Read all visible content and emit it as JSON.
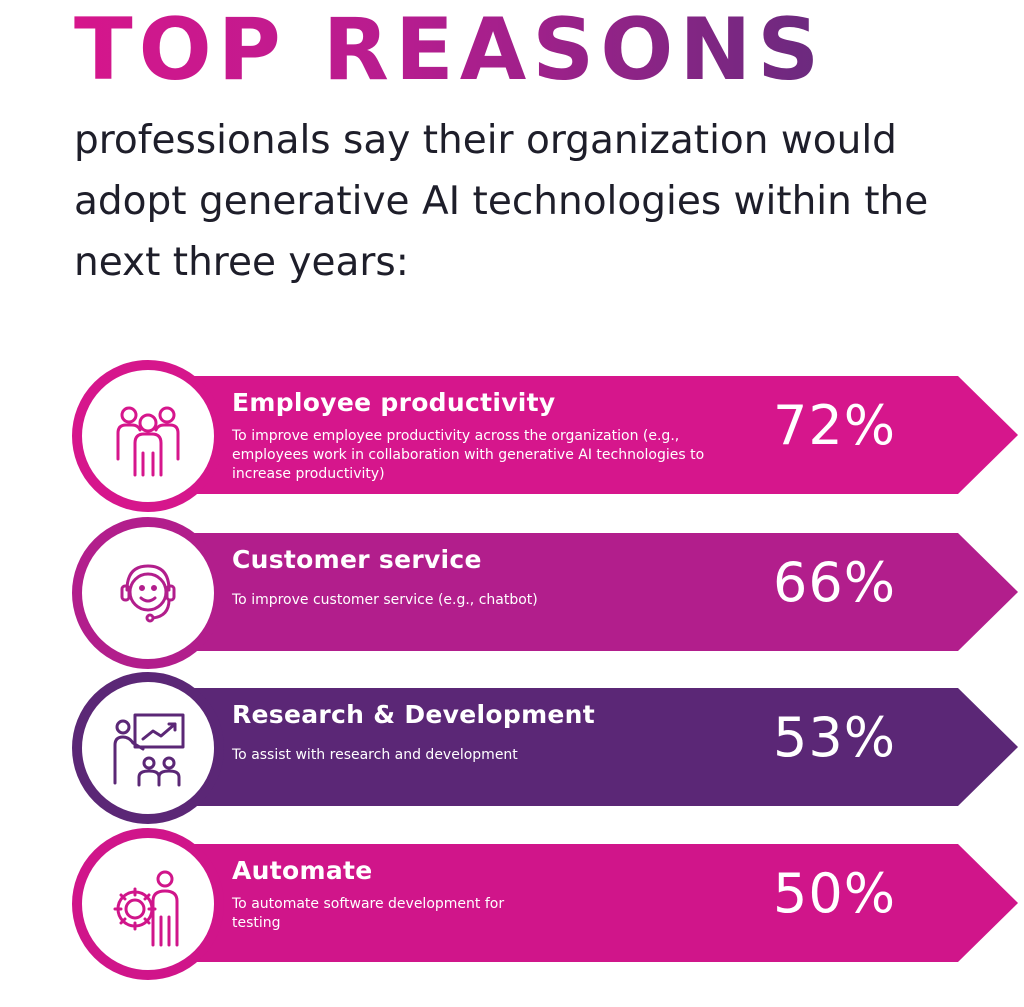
{
  "header": {
    "title": "TOP REASONS",
    "subtitle": "professionals say their organization would adopt generative AI technologies within the next three years:"
  },
  "chart_data": {
    "type": "bar",
    "categories": [
      "Employee productivity",
      "Customer service",
      "Research & Development",
      "Automate"
    ],
    "values": [
      72,
      66,
      53,
      50
    ],
    "descriptions": [
      "To improve employee productivity across the organization (e.g., employees work in collaboration with generative AI technologies to increase productivity)",
      "To improve customer service (e.g., chatbot)",
      "To assist with research and development",
      "To automate software development for testing"
    ],
    "value_labels": [
      "72%",
      "66%",
      "53%",
      "50%"
    ],
    "icons": [
      "team-icon",
      "headset-agent-icon",
      "presentation-chart-icon",
      "gear-person-icon"
    ],
    "colors": [
      "#d6168c",
      "#b21e8c",
      "#5b2776",
      "#d0158a"
    ]
  }
}
